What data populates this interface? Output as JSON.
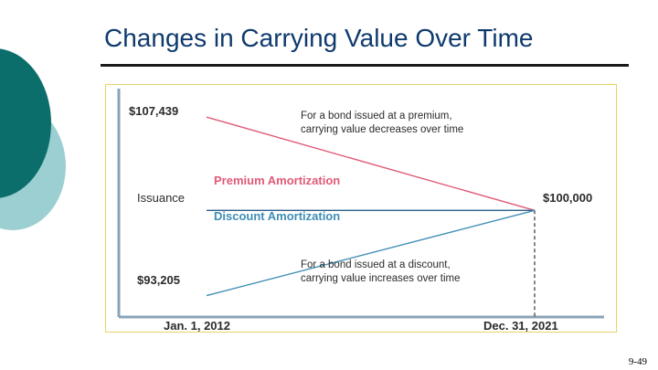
{
  "slide": {
    "title": "Changes in Carrying Value Over Time",
    "page_number": "9-49"
  },
  "colors": {
    "premium": "#e05a78",
    "discount": "#3f8eb5",
    "issuance": "#2d5f8a",
    "axis": "#8aa3b8",
    "text": "#2b2b2b",
    "deco_dark": "#0b6e6b",
    "deco_light": "#9ccfd1"
  },
  "chart_data": {
    "type": "line",
    "x": [
      "Jan. 1, 2012",
      "Dec. 31, 2021"
    ],
    "series": [
      {
        "name": "Premium Amortization",
        "values": [
          107439,
          100000
        ]
      },
      {
        "name": "Issuance",
        "values": [
          100000,
          100000
        ]
      },
      {
        "name": "Discount Amortization",
        "values": [
          93205,
          100000
        ]
      }
    ],
    "ylim": [
      91500,
      110000
    ],
    "value_labels": {
      "premium_start": "$107,439",
      "discount_start": "$93,205",
      "issuance": "Issuance",
      "end": "$100,000"
    },
    "series_labels": {
      "premium": "Premium Amortization",
      "discount": "Discount Amortization"
    },
    "annotations": {
      "premium": [
        "For a bond issued at a premium,",
        "carrying value decreases over time"
      ],
      "discount": [
        "For a bond issued at a discount,",
        "carrying value increases over time"
      ]
    },
    "x_labels": {
      "start": "Jan. 1, 2012",
      "end": "Dec. 31, 2021"
    }
  }
}
